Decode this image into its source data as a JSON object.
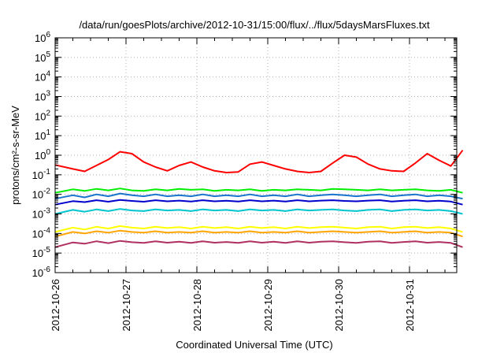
{
  "chart_data": {
    "type": "line",
    "title": "/data/run/goesPlots/archive/2012-10-31/15:00/flux/../flux/5daysMarsFluxes.txt",
    "xlabel": "Coordinated Universal Time (UTC)",
    "ylabel": "protons/cm²-s-sr-MeV",
    "yscale": "log",
    "ylim": [
      1e-06,
      1000000.0
    ],
    "xlim": [
      "2012-10-26T00:00",
      "2012-10-31T16:00"
    ],
    "x_ticks": [
      "2012-10-26",
      "2012-10-27",
      "2012-10-28",
      "2012-10-29",
      "2012-10-30",
      "2012-10-31"
    ],
    "y_ticks": [
      {
        "base": "10",
        "exp": "-6"
      },
      {
        "base": "10",
        "exp": "-5"
      },
      {
        "base": "10",
        "exp": "-4"
      },
      {
        "base": "10",
        "exp": "-3"
      },
      {
        "base": "10",
        "exp": "-2"
      },
      {
        "base": "10",
        "exp": "-1"
      },
      {
        "base": "10",
        "exp": "0"
      },
      {
        "base": "10",
        "exp": "1"
      },
      {
        "base": "10",
        "exp": "2"
      },
      {
        "base": "10",
        "exp": "3"
      },
      {
        "base": "10",
        "exp": "4"
      },
      {
        "base": "10",
        "exp": "5"
      },
      {
        "base": "10",
        "exp": "6"
      }
    ],
    "grid": true,
    "legend": "none",
    "x_hours": [
      0,
      6,
      10,
      14,
      18,
      22,
      26,
      30,
      34,
      38,
      42,
      46,
      50,
      54,
      58,
      62,
      66,
      70,
      74,
      78,
      82,
      86,
      90,
      94,
      98,
      102,
      106,
      110,
      114,
      118,
      122,
      126,
      130,
      134,
      138
    ],
    "series": [
      {
        "color": "#ff0000",
        "values": [
          0.32,
          0.2,
          0.15,
          0.3,
          0.6,
          1.5,
          1.2,
          0.45,
          0.25,
          0.16,
          0.3,
          0.45,
          0.25,
          0.16,
          0.13,
          0.14,
          0.35,
          0.45,
          0.3,
          0.2,
          0.15,
          0.13,
          0.15,
          0.4,
          1.0,
          0.8,
          0.35,
          0.2,
          0.16,
          0.15,
          0.4,
          1.2,
          0.55,
          0.28,
          1.8
        ]
      },
      {
        "color": "#00ee00",
        "values": [
          0.012,
          0.018,
          0.015,
          0.019,
          0.016,
          0.02,
          0.016,
          0.015,
          0.018,
          0.016,
          0.019,
          0.017,
          0.018,
          0.015,
          0.017,
          0.016,
          0.018,
          0.015,
          0.017,
          0.016,
          0.018,
          0.017,
          0.016,
          0.019,
          0.018,
          0.017,
          0.016,
          0.018,
          0.016,
          0.017,
          0.018,
          0.016,
          0.015,
          0.017,
          0.012
        ]
      },
      {
        "color": "#1874cd",
        "values": [
          0.006,
          0.009,
          0.007,
          0.01,
          0.008,
          0.011,
          0.009,
          0.008,
          0.01,
          0.008,
          0.009,
          0.008,
          0.01,
          0.008,
          0.009,
          0.008,
          0.01,
          0.008,
          0.009,
          0.008,
          0.01,
          0.008,
          0.009,
          0.01,
          0.009,
          0.008,
          0.009,
          0.01,
          0.008,
          0.009,
          0.01,
          0.008,
          0.009,
          0.008,
          0.006
        ]
      },
      {
        "color": "#0000cd",
        "values": [
          0.003,
          0.0045,
          0.004,
          0.005,
          0.0042,
          0.0052,
          0.0046,
          0.0042,
          0.005,
          0.0044,
          0.0048,
          0.0043,
          0.005,
          0.0044,
          0.0047,
          0.0043,
          0.005,
          0.0044,
          0.0048,
          0.0043,
          0.005,
          0.0044,
          0.0048,
          0.005,
          0.0046,
          0.0044,
          0.0048,
          0.005,
          0.0043,
          0.0047,
          0.005,
          0.0044,
          0.0047,
          0.0043,
          0.003
        ]
      },
      {
        "color": "#00c5cd",
        "values": [
          0.001,
          0.0016,
          0.0013,
          0.0017,
          0.0014,
          0.0018,
          0.0015,
          0.0014,
          0.0017,
          0.0015,
          0.0016,
          0.0014,
          0.0017,
          0.0015,
          0.0016,
          0.0014,
          0.0017,
          0.0015,
          0.0016,
          0.0014,
          0.0017,
          0.0015,
          0.0016,
          0.0017,
          0.0015,
          0.0014,
          0.0016,
          0.0017,
          0.0014,
          0.0016,
          0.0017,
          0.0015,
          0.0016,
          0.0014,
          0.001
        ]
      },
      {
        "color": "#ffff00",
        "values": [
          0.00012,
          0.0002,
          0.00016,
          0.00022,
          0.00018,
          0.00024,
          0.0002,
          0.00018,
          0.00022,
          0.00019,
          0.00021,
          0.00018,
          0.00022,
          0.00019,
          0.00021,
          0.00018,
          0.00022,
          0.00019,
          0.00021,
          0.00018,
          0.00022,
          0.00019,
          0.00021,
          0.00022,
          0.0002,
          0.00018,
          0.00021,
          0.00022,
          0.00018,
          0.00021,
          0.00022,
          0.00019,
          0.00021,
          0.00018,
          0.00012
        ]
      },
      {
        "color": "#ffa500",
        "values": [
          7e-05,
          0.00012,
          0.0001,
          0.00013,
          0.00011,
          0.00014,
          0.00012,
          0.00011,
          0.00013,
          0.00011,
          0.00012,
          0.00011,
          0.00013,
          0.00011,
          0.00012,
          0.00011,
          0.00013,
          0.00011,
          0.00012,
          0.00011,
          0.00013,
          0.00011,
          0.00012,
          0.00013,
          0.00012,
          0.00011,
          0.00012,
          0.00013,
          0.00011,
          0.00012,
          0.00013,
          0.00011,
          0.00012,
          0.00011,
          7e-05
        ]
      },
      {
        "color": "#b03060",
        "values": [
          2e-05,
          3.5e-05,
          3e-05,
          4e-05,
          3.2e-05,
          4.2e-05,
          3.6e-05,
          3.3e-05,
          4e-05,
          3.4e-05,
          3.8e-05,
          3.3e-05,
          4e-05,
          3.4e-05,
          3.7e-05,
          3.3e-05,
          4e-05,
          3.4e-05,
          3.8e-05,
          3.3e-05,
          4e-05,
          3.4e-05,
          3.8e-05,
          4e-05,
          3.6e-05,
          3.3e-05,
          3.8e-05,
          4e-05,
          3.3e-05,
          3.7e-05,
          4e-05,
          3.4e-05,
          3.7e-05,
          3.3e-05,
          2e-05
        ]
      }
    ]
  }
}
